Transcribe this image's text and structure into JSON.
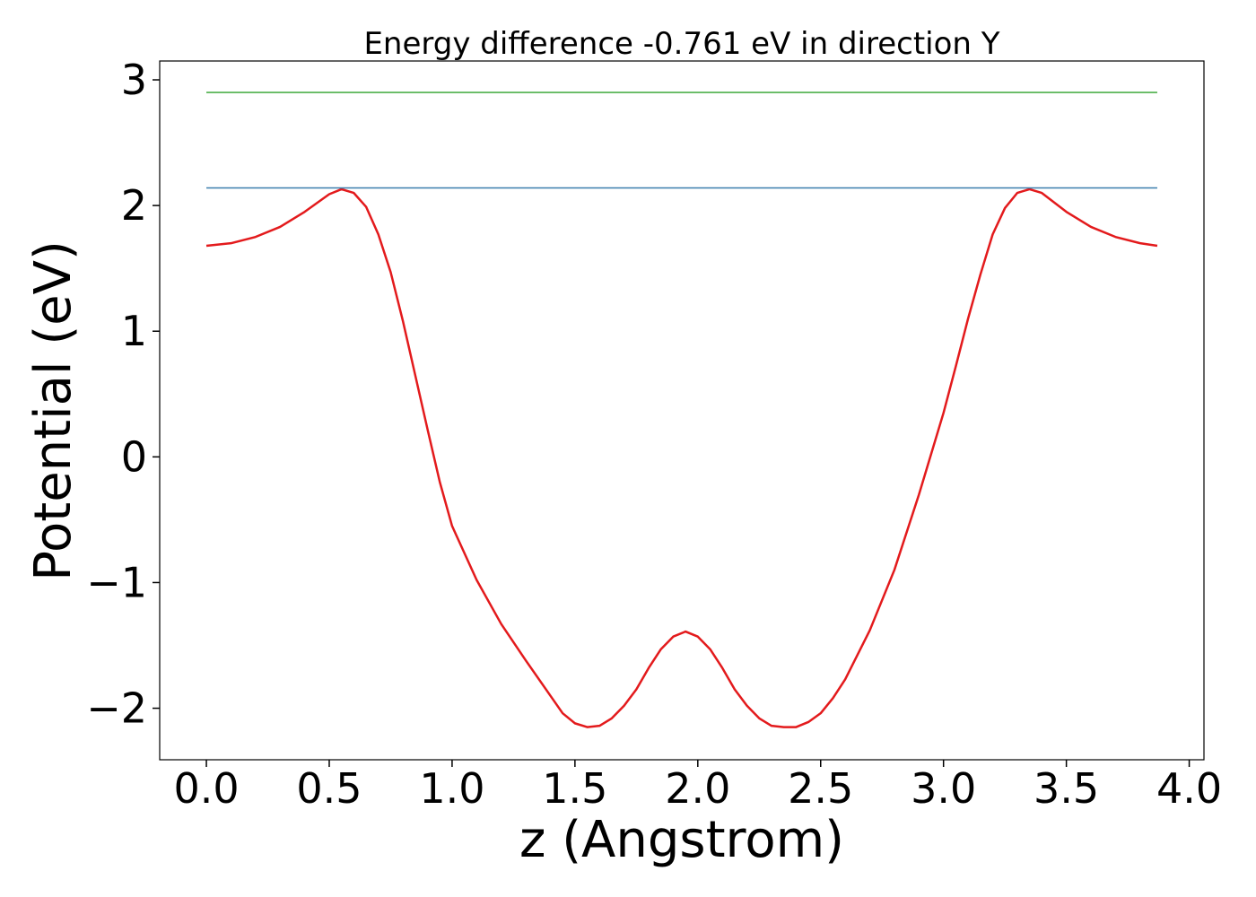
{
  "chart_data": {
    "type": "line",
    "title": "Energy difference -0.761 eV in direction Y",
    "xlabel": "z (Angstrom)",
    "ylabel": "Potential (eV)",
    "xlim": [
      -0.19,
      4.06
    ],
    "ylim": [
      -2.41,
      3.15
    ],
    "xticks": [
      {
        "value": 0,
        "label": "0.0"
      },
      0.5,
      {
        "value": 1,
        "label": "1.0"
      },
      1.5,
      {
        "value": 2,
        "label": "2.0"
      },
      2.5,
      {
        "value": 3,
        "label": "3.0"
      },
      3.5,
      {
        "value": 4,
        "label": "4.0"
      }
    ],
    "yticks": [
      {
        "value": -2,
        "label": "−2"
      },
      {
        "value": -1,
        "label": "−1"
      },
      0,
      1,
      2,
      3
    ],
    "series": [
      {
        "color": "#e31a1c",
        "x": [
          0,
          0.1,
          0.2,
          0.3,
          0.4,
          0.5,
          0.55,
          0.6,
          0.65,
          0.7,
          0.75,
          0.8,
          0.85,
          0.9,
          0.95,
          1.0,
          1.1,
          1.2,
          1.3,
          1.4,
          1.45,
          1.5,
          1.55,
          1.6,
          1.65,
          1.7,
          1.75,
          1.8,
          1.85,
          1.9,
          1.95,
          2.0,
          2.05,
          2.1,
          2.15,
          2.2,
          2.25,
          2.3,
          2.35,
          2.4,
          2.45,
          2.5,
          2.55,
          2.6,
          2.7,
          2.8,
          2.9,
          3.0,
          3.05,
          3.1,
          3.15,
          3.2,
          3.25,
          3.3,
          3.35,
          3.4,
          3.5,
          3.6,
          3.7,
          3.8,
          3.87
        ],
        "values": [
          1.68,
          1.7,
          1.75,
          1.83,
          1.95,
          2.09,
          2.13,
          2.1,
          1.99,
          1.77,
          1.47,
          1.08,
          0.65,
          0.22,
          -0.2,
          -0.55,
          -0.98,
          -1.33,
          -1.62,
          -1.9,
          -2.04,
          -2.12,
          -2.15,
          -2.14,
          -2.08,
          -1.98,
          -1.85,
          -1.68,
          -1.53,
          -1.43,
          -1.39,
          -1.43,
          -1.53,
          -1.68,
          -1.85,
          -1.98,
          -2.08,
          -2.14,
          -2.15,
          -2.15,
          -2.11,
          -2.04,
          -1.92,
          -1.77,
          -1.38,
          -0.9,
          -0.3,
          0.35,
          0.72,
          1.1,
          1.45,
          1.77,
          1.98,
          2.1,
          2.13,
          2.1,
          1.95,
          1.83,
          1.75,
          1.7,
          1.68
        ]
      },
      {
        "color": "#3a7dad",
        "x": [
          0,
          3.87
        ],
        "values": [
          2.14,
          2.14
        ]
      },
      {
        "color": "#4daf4a",
        "x": [
          0,
          3.87
        ],
        "values": [
          2.9,
          2.9
        ]
      }
    ]
  }
}
